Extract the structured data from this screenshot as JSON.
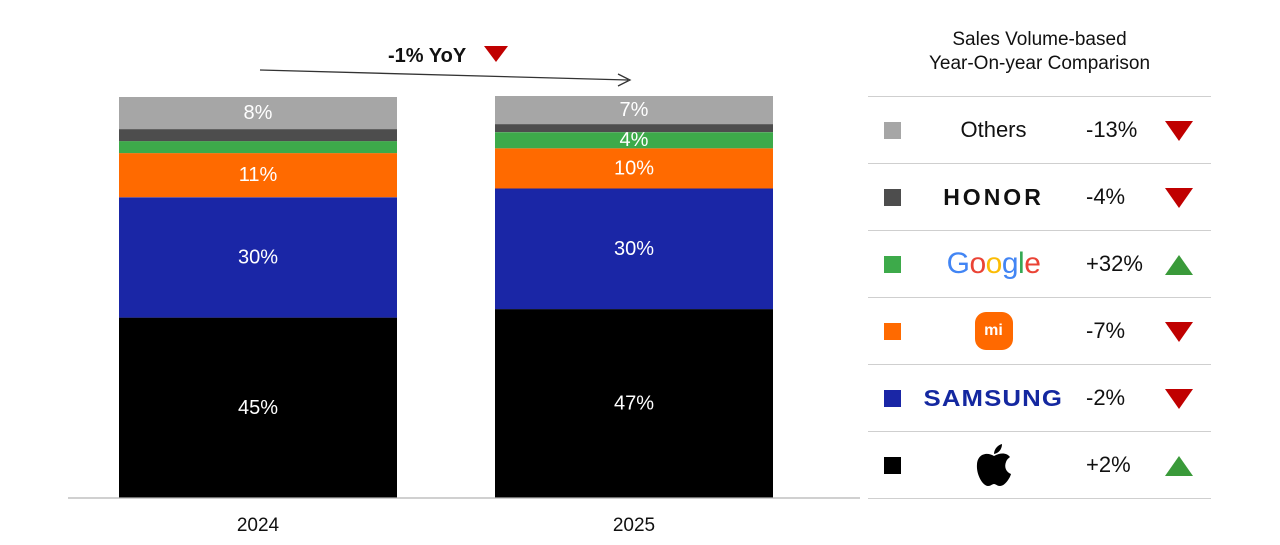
{
  "chart_data": {
    "type": "bar",
    "stacked": true,
    "categories": [
      "2024",
      "2025"
    ],
    "series": [
      {
        "name": "Apple",
        "color": "#000000",
        "values": [
          45,
          47
        ],
        "labels": [
          "45%",
          "47%"
        ]
      },
      {
        "name": "Samsung",
        "color": "#1a26a6",
        "values": [
          30,
          30
        ],
        "labels": [
          "30%",
          "30%"
        ]
      },
      {
        "name": "Xiaomi",
        "color": "#ff6a00",
        "values": [
          11,
          10
        ],
        "labels": [
          "11%",
          "10%"
        ]
      },
      {
        "name": "Google",
        "color": "#3daa4a",
        "values": [
          3,
          4
        ],
        "labels": [
          "",
          "4%"
        ]
      },
      {
        "name": "HONOR",
        "color": "#4d4d4d",
        "values": [
          3,
          2
        ],
        "labels": [
          "",
          ""
        ]
      },
      {
        "name": "Others",
        "color": "#a6a6a6",
        "values": [
          8,
          7
        ],
        "labels": [
          "8%",
          "7%"
        ]
      }
    ],
    "ylim": [
      0,
      100
    ],
    "annotation": {
      "text": "-1% YoY",
      "direction": "down",
      "from": "2024",
      "to": "2025"
    },
    "legend_placement": "right"
  },
  "legend": {
    "title_line1": "Sales Volume-based",
    "title_line2": "Year-On-year Comparison",
    "rows": [
      {
        "brand": "Others",
        "brand_display": "Others",
        "swatch": "#a6a6a6",
        "change": "-13%",
        "direction": "down"
      },
      {
        "brand": "HONOR",
        "brand_display": "HONOR",
        "swatch": "#4d4d4d",
        "change": "-4%",
        "direction": "down"
      },
      {
        "brand": "Google",
        "brand_display": "Google",
        "swatch": "#3daa4a",
        "change": "+32%",
        "direction": "up"
      },
      {
        "brand": "Xiaomi",
        "brand_display": "mi",
        "swatch": "#ff6a00",
        "change": "-7%",
        "direction": "down"
      },
      {
        "brand": "Samsung",
        "brand_display": "SAMSUNG",
        "swatch": "#1a26a6",
        "change": "-2%",
        "direction": "down"
      },
      {
        "brand": "Apple",
        "brand_display": "",
        "swatch": "#000000",
        "change": "+2%",
        "direction": "up"
      }
    ]
  },
  "colors": {
    "down": "#c00000",
    "up": "#3a9a3a",
    "google": [
      "#4285f4",
      "#ea4335",
      "#fbbc05",
      "#4285f4",
      "#34a853",
      "#ea4335"
    ]
  }
}
